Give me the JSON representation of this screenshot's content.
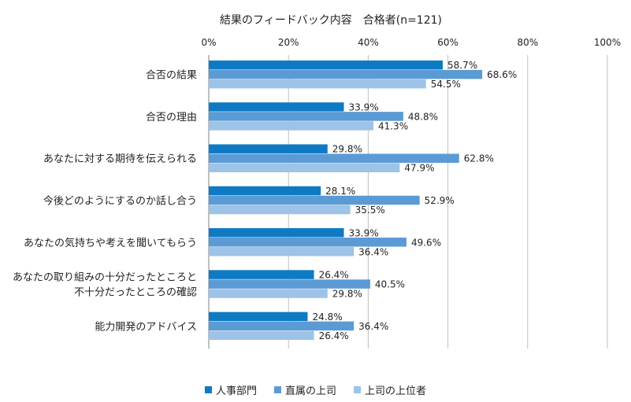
{
  "chart_data": {
    "type": "bar",
    "orientation": "horizontal",
    "title": "結果のフィードバック内容　合格者(n=121)",
    "categories": [
      [
        "合否の結果"
      ],
      [
        "合否の理由"
      ],
      [
        "あなたに対する期待を伝えられる"
      ],
      [
        "今後どのようにするのか話し合う"
      ],
      [
        "あなたの気持ちや考えを聞いてもらう"
      ],
      [
        "あなたの取り組みの十分だったところと",
        "不十分だったところの確認"
      ],
      [
        "能力開発のアドバイス"
      ]
    ],
    "series": [
      {
        "name": "人事部門",
        "color": "#0E7AC4",
        "values": [
          58.7,
          33.9,
          29.8,
          28.1,
          33.9,
          26.4,
          24.8
        ]
      },
      {
        "name": "直属の上司",
        "color": "#5B9BD5",
        "values": [
          68.6,
          48.8,
          62.8,
          52.9,
          49.6,
          40.5,
          36.4
        ]
      },
      {
        "name": "上司の上位者",
        "color": "#9DC3E6",
        "values": [
          54.5,
          41.3,
          47.9,
          35.5,
          36.4,
          29.8,
          26.4
        ]
      }
    ],
    "xlim": [
      0,
      100
    ],
    "xticks": [
      0,
      20,
      40,
      60,
      80,
      100
    ],
    "tick_suffix": "%",
    "value_suffix": "%",
    "grid": true,
    "legend_position": "bottom"
  }
}
